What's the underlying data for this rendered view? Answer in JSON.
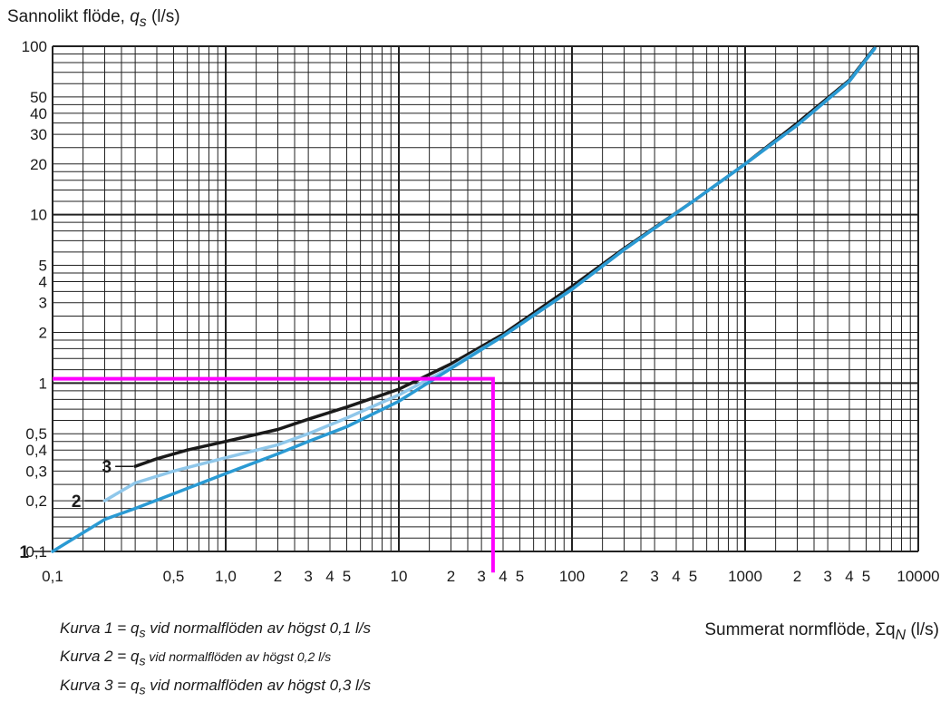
{
  "chart_data": {
    "type": "line",
    "x_scale": "log",
    "y_scale": "log",
    "xlim": [
      0.1,
      10000
    ],
    "ylim": [
      0.1,
      100
    ],
    "ylabel": "Sannolikt flöde, qs (l/s)",
    "ylabel_parts": {
      "pre": "Sannolikt flöde, ",
      "var": "q",
      "sub": "s",
      "post": " (l/s)"
    },
    "xlabel": "Summerat normflöde, ΣqN (l/s)",
    "xlabel_parts": {
      "pre": "Summerat normflöde, ",
      "sym": "Σq",
      "sub": "N",
      "post": " (l/s)"
    },
    "x_tick_labels": [
      {
        "x": 0.1,
        "label": "0,1"
      },
      {
        "x": 0.5,
        "label": "0,5"
      },
      {
        "x": 1,
        "label": "1,0"
      },
      {
        "x": 2,
        "label": "2"
      },
      {
        "x": 3,
        "label": "3"
      },
      {
        "x": 4,
        "label": "4"
      },
      {
        "x": 5,
        "label": "5"
      },
      {
        "x": 10,
        "label": "10"
      },
      {
        "x": 20,
        "label": "2"
      },
      {
        "x": 30,
        "label": "3"
      },
      {
        "x": 40,
        "label": "4"
      },
      {
        "x": 50,
        "label": "5"
      },
      {
        "x": 100,
        "label": "100"
      },
      {
        "x": 200,
        "label": "2"
      },
      {
        "x": 300,
        "label": "3"
      },
      {
        "x": 400,
        "label": "4"
      },
      {
        "x": 500,
        "label": "5"
      },
      {
        "x": 1000,
        "label": "1000"
      },
      {
        "x": 2000,
        "label": "2"
      },
      {
        "x": 3000,
        "label": "3"
      },
      {
        "x": 4000,
        "label": "4"
      },
      {
        "x": 5000,
        "label": "5"
      },
      {
        "x": 10000,
        "label": "10000"
      }
    ],
    "y_tick_labels": [
      {
        "y": 0.1,
        "label": "0,1"
      },
      {
        "y": 0.2,
        "label": "0,2"
      },
      {
        "y": 0.3,
        "label": "0,3"
      },
      {
        "y": 0.4,
        "label": "0,4"
      },
      {
        "y": 0.5,
        "label": "0,5"
      },
      {
        "y": 1,
        "label": "1"
      },
      {
        "y": 2,
        "label": "2"
      },
      {
        "y": 3,
        "label": "3"
      },
      {
        "y": 4,
        "label": "4"
      },
      {
        "y": 5,
        "label": "5"
      },
      {
        "y": 10,
        "label": "10"
      },
      {
        "y": 20,
        "label": "20"
      },
      {
        "y": 30,
        "label": "30"
      },
      {
        "y": 40,
        "label": "40"
      },
      {
        "y": 50,
        "label": "50"
      },
      {
        "y": 100,
        "label": "100"
      }
    ],
    "series": [
      {
        "label": "1",
        "color": "#2a9ad3",
        "points": [
          [
            0.1,
            0.1
          ],
          [
            0.2,
            0.155
          ],
          [
            0.3,
            0.18
          ],
          [
            0.5,
            0.22
          ],
          [
            1,
            0.29
          ],
          [
            2,
            0.38
          ],
          [
            3,
            0.45
          ],
          [
            5,
            0.55
          ],
          [
            10,
            0.78
          ],
          [
            20,
            1.22
          ],
          [
            40,
            1.9
          ],
          [
            100,
            3.6
          ],
          [
            200,
            6.2
          ],
          [
            500,
            12
          ],
          [
            1000,
            20
          ],
          [
            2000,
            34
          ],
          [
            4000,
            62
          ],
          [
            5600,
            97
          ]
        ]
      },
      {
        "label": "2",
        "color": "#8fc7ea",
        "points": [
          [
            0.2,
            0.2
          ],
          [
            0.3,
            0.255
          ],
          [
            0.5,
            0.3
          ],
          [
            1,
            0.36
          ],
          [
            2,
            0.43
          ],
          [
            3,
            0.5
          ],
          [
            5,
            0.62
          ],
          [
            10,
            0.85
          ],
          [
            20,
            1.24
          ],
          [
            40,
            1.9
          ],
          [
            100,
            3.6
          ],
          [
            200,
            6.2
          ],
          [
            500,
            12
          ],
          [
            1000,
            20
          ],
          [
            2000,
            34
          ],
          [
            4000,
            62
          ],
          [
            5600,
            97
          ]
        ]
      },
      {
        "label": "3",
        "color": "#1a1a1a",
        "points": [
          [
            0.3,
            0.32
          ],
          [
            0.4,
            0.355
          ],
          [
            0.6,
            0.4
          ],
          [
            1,
            0.45
          ],
          [
            2,
            0.53
          ],
          [
            3,
            0.61
          ],
          [
            5,
            0.72
          ],
          [
            10,
            0.92
          ],
          [
            20,
            1.3
          ],
          [
            40,
            1.95
          ],
          [
            100,
            3.75
          ],
          [
            200,
            6.3
          ],
          [
            500,
            12
          ],
          [
            1000,
            20
          ],
          [
            2000,
            35
          ],
          [
            4000,
            63
          ],
          [
            5600,
            98
          ]
        ]
      }
    ],
    "annotation_path": {
      "color": "#ff00ff",
      "points": [
        [
          0.1,
          1.06
        ],
        [
          35,
          1.06
        ],
        [
          35,
          0.075
        ]
      ]
    }
  },
  "legend": [
    {
      "pre": "Kurva 1 = ",
      "var": "q",
      "sub": "s",
      "post": " vid normalflöden av högst 0,1 l/s"
    },
    {
      "pre": "Kurva 2 = ",
      "var": "q",
      "sub": "s",
      "post": " vid normalflöden av högst 0,2 l/s"
    },
    {
      "pre": "Kurva 3 = ",
      "var": "q",
      "sub": "s",
      "post": " vid normalflöden av högst 0,3 l/s"
    }
  ]
}
